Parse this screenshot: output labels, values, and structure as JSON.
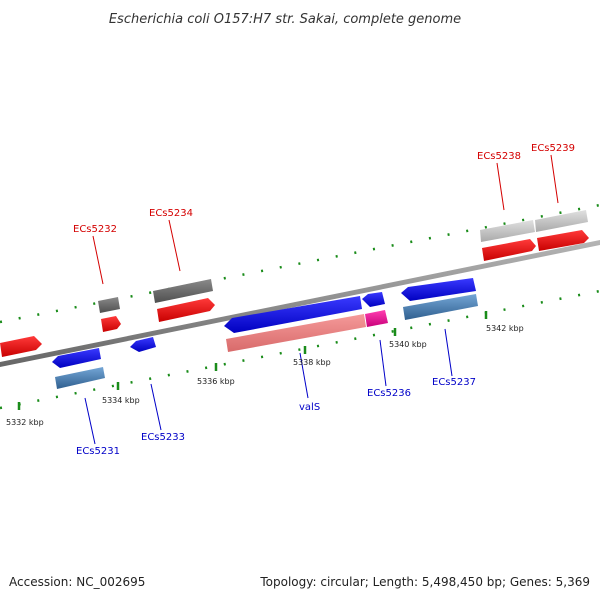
{
  "title": "Escherichia coli O157:H7 str. Sakai, complete genome",
  "footer": {
    "accession": "Accession: NC_002695",
    "summary": "Topology: circular; Length: 5,498,450 bp; Genes: 5,369"
  },
  "colors": {
    "backbone": "#808080",
    "forward_cds": "#ff0000",
    "reverse_cds": "#1a1aff",
    "forward_gene": "#737373",
    "reverse_gene": "#4a86c0",
    "forward_label": "#d40000",
    "reverse_label": "#0000c8",
    "tick": "#1a8c1a"
  },
  "ticks": [
    "5332 kbp",
    "5334 kbp",
    "5336 kbp",
    "5338 kbp",
    "5340 kbp",
    "5342 kbp"
  ],
  "gene_labels": {
    "forward": [
      "ECs5232",
      "ECs5234",
      "ECs5238",
      "ECs5239"
    ],
    "reverse": [
      "ECs5231",
      "ECs5233",
      "valS",
      "ECs5236",
      "ECs5237"
    ]
  }
}
